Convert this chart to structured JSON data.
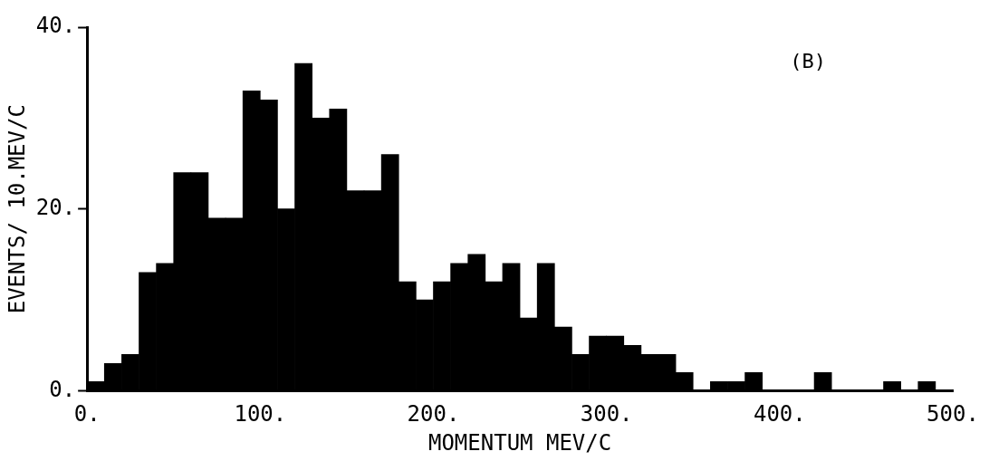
{
  "chart_data": {
    "type": "histogram",
    "xlabel": "MOMENTUM MEV/C",
    "ylabel": "EVENTS/ 10.MEV/C",
    "annotations": [
      "(B)"
    ],
    "bins": [
      0,
      10,
      20,
      30,
      40,
      50,
      60,
      70,
      80,
      90,
      100,
      110,
      120,
      130,
      140,
      150,
      160,
      170,
      180,
      190,
      200,
      210,
      220,
      230,
      240,
      250,
      260,
      270,
      280,
      290,
      300,
      310,
      320,
      330,
      340,
      350,
      360,
      370,
      380,
      390,
      400,
      410,
      420,
      430,
      440,
      450,
      460,
      470,
      480,
      490,
      500
    ],
    "values": [
      1,
      3,
      4,
      13,
      14,
      24,
      24,
      19,
      19,
      33,
      32,
      20,
      36,
      30,
      31,
      22,
      22,
      26,
      12,
      10,
      12,
      14,
      15,
      12,
      14,
      8,
      14,
      7,
      4,
      6,
      6,
      5,
      4,
      4,
      2,
      0,
      1,
      1,
      2,
      0,
      0,
      0,
      2,
      0,
      0,
      0,
      1,
      0,
      1,
      0
    ],
    "color": "#000000",
    "xlim": [
      0,
      500
    ],
    "xticks": [
      {
        "value": 0,
        "label": "0."
      },
      {
        "value": 100,
        "label": "100."
      },
      {
        "value": 200,
        "label": "200."
      },
      {
        "value": 300,
        "label": "300."
      },
      {
        "value": 400,
        "label": "400."
      },
      {
        "value": 500,
        "label": "500."
      }
    ],
    "ylim": [
      0,
      40
    ],
    "yticks": [
      {
        "value": 0,
        "label": "0."
      },
      {
        "value": 20,
        "label": "20."
      },
      {
        "value": 40,
        "label": "40."
      }
    ],
    "grid": false,
    "legend": false
  }
}
